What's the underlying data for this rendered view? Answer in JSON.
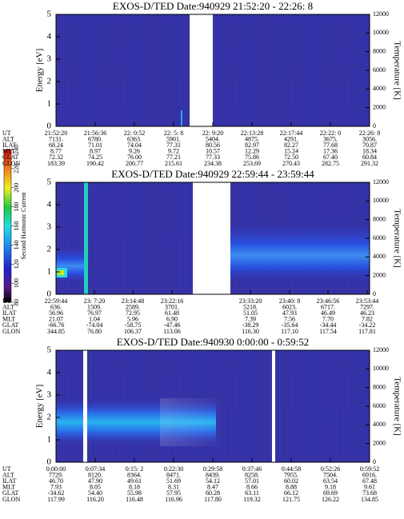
{
  "chart_data": [
    {
      "type": "heatmap",
      "title": "EXOS-D/TED   Date:940929  21:52:20 - 22:26: 8",
      "ylabel": "Energy [eV]",
      "y2label": "Temperature [K]",
      "ylim": [
        0,
        5
      ],
      "yticks": [
        0,
        1,
        2,
        3,
        4,
        5
      ],
      "y2lim": [
        0,
        12000
      ],
      "y2ticks": [
        0,
        2000,
        4000,
        6000,
        8000,
        10000,
        12000
      ],
      "table": {
        "rows": [
          {
            "label": "UT",
            "cells": [
              "21:52:20",
              "21:56:36",
              "22: 0:52",
              "22: 5: 8",
              "22: 9:20",
              "22:13:28",
              "22:17:44",
              "22:22: 0",
              "22:26: 8"
            ]
          },
          {
            "label": "ALT",
            "cells": [
              "7131.",
              "6780.",
              "6363.",
              "5901.",
              "5404.",
              "4875.",
              "4291.",
              "3675.",
              "3056."
            ]
          },
          {
            "label": "ILAT",
            "cells": [
              "68.24",
              "71.01",
              "74.04",
              "77.31",
              "80.56",
              "82.97",
              "82.27",
              "77.68",
              "70.87"
            ]
          },
          {
            "label": "MLT",
            "cells": [
              "8.77",
              "8.97",
              "9.26",
              "9.72",
              "10.57",
              "12.29",
              "15.24",
              "17.36",
              "18.34"
            ]
          },
          {
            "label": "GLAT",
            "cells": [
              "72.32",
              "74.25",
              "76.00",
              "77.21",
              "77.33",
              "75.86",
              "72.50",
              "67.40",
              "60.84"
            ]
          },
          {
            "label": "GLON",
            "cells": [
              "183.39",
              "190.42",
              "200.77",
              "215.61",
              "234.38",
              "253.69",
              "270.43",
              "282.75",
              "291.32"
            ]
          }
        ]
      }
    },
    {
      "type": "heatmap",
      "title": "EXOS-D/TED   Date:940929  22:59:44 - 23:59:44",
      "y2label": "Temperature [K]",
      "ylim": [
        0,
        5
      ],
      "yticks": [
        0,
        1,
        2,
        3,
        4,
        5
      ],
      "y2lim": [
        0,
        12000
      ],
      "y2ticks": [
        0,
        2000,
        4000,
        6000,
        8000,
        10000,
        12000
      ],
      "table": {
        "rows": [
          {
            "label": "UT",
            "cells": [
              "22:59:44",
              "23: 7:20",
              "23:14:48",
              "23:22:16",
              "23:33:20",
              "23:40: 8",
              "23:46:56",
              "23:53:44"
            ]
          },
          {
            "label": "ALT",
            "cells": [
              "636.",
              "1509.",
              "2589.",
              "3701.",
              "5218.",
              "6023.",
              "6717.",
              "7297."
            ]
          },
          {
            "label": "ILAT",
            "cells": [
              "56.96",
              "76.97",
              "72.95",
              "61.48",
              "51.05",
              "47.93",
              "46.49",
              "46.23"
            ]
          },
          {
            "label": "MLT",
            "cells": [
              "21.07",
              "1.04",
              "5.96",
              "6.90",
              "7.39",
              "7.56",
              "7.70",
              "7.82"
            ]
          },
          {
            "label": "GLAT",
            "cells": [
              "-66.76",
              "-74.04",
              "-58.75",
              "-47.46",
              "-38.29",
              "-35.64",
              "-34.44",
              "-34.22"
            ]
          },
          {
            "label": "GLON",
            "cells": [
              "344.85",
              "76.80",
              "106.37",
              "113.06",
              "116.30",
              "117.10",
              "117.54",
              "117.81"
            ]
          }
        ]
      }
    },
    {
      "type": "heatmap",
      "title": "EXOS-D/TED   Date:940930  0:00:00 - 0:59:52",
      "ylabel": "Energy [eV]",
      "y2label": "Temperature [K]",
      "ylim": [
        0,
        5
      ],
      "yticks": [
        0,
        1,
        2,
        3,
        4,
        5
      ],
      "y2lim": [
        0,
        12000
      ],
      "y2ticks": [
        0,
        2000,
        4000,
        6000,
        8000,
        10000,
        12000
      ],
      "table": {
        "rows": [
          {
            "label": "UT",
            "cells": [
              "0:00:00",
              "0:07:34",
              "0:15: 2",
              "0:22:30",
              "0:29:58",
              "0:37:46",
              "0:44:58",
              "0:52:26",
              "0:59:52"
            ]
          },
          {
            "label": "ALT",
            "cells": [
              "7729.",
              "8120.",
              "8364.",
              "8471.",
              "8439.",
              "8258.",
              "7955.",
              "7504.",
              "6916."
            ]
          },
          {
            "label": "ILAT",
            "cells": [
              "46.70",
              "47.90",
              "49.61",
              "51.69",
              "54.12",
              "57.01",
              "60.02",
              "63.54",
              "67.48"
            ]
          },
          {
            "label": "MLT",
            "cells": [
              "7.93",
              "8.05",
              "8.18",
              "8.31",
              "8.47",
              "8.66",
              "8.88",
              "9.18",
              "9.61"
            ]
          },
          {
            "label": "GLAT",
            "cells": [
              "-34.62",
              "54.40",
              "55.98",
              "57.95",
              "60.28",
              "63.11",
              "66.12",
              "69.69",
              "73.68"
            ]
          },
          {
            "label": "GLON",
            "cells": [
              "117.99",
              "116.20",
              "116.48",
              "116.96",
              "117.80",
              "119.32",
              "121.75",
              "126.22",
              "134.85"
            ]
          }
        ]
      }
    }
  ],
  "colorbar": {
    "label": "Second Harmonic Current",
    "lim": [
      80,
      240
    ],
    "ticks": [
      80,
      100,
      120,
      140,
      160,
      180,
      200,
      220,
      240
    ]
  }
}
